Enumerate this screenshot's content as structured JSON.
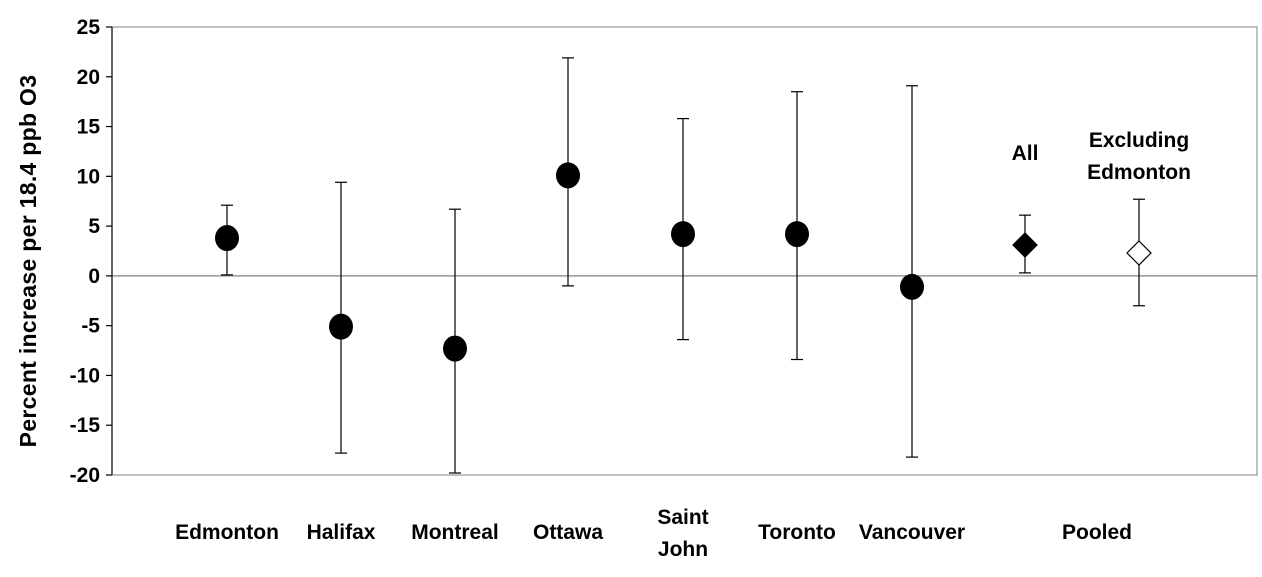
{
  "chart_data": {
    "type": "scatter",
    "ylabel": "Percent increase per 18.4 ppb O3",
    "ylim": [
      -20,
      25
    ],
    "yticks": [
      "25",
      "20",
      "15",
      "10",
      "5",
      "0",
      "-5",
      "-10",
      "-15",
      "-20"
    ],
    "grid": false,
    "categories": [
      {
        "label": [
          "Edmonton"
        ],
        "estimate": 3.8,
        "lower": 0.1,
        "upper": 7.1,
        "marker": "circle-filled"
      },
      {
        "label": [
          "Halifax"
        ],
        "estimate": -5.1,
        "lower": -17.8,
        "upper": 9.4,
        "marker": "circle-filled"
      },
      {
        "label": [
          "Montreal"
        ],
        "estimate": -7.3,
        "lower": -19.8,
        "upper": 6.7,
        "marker": "circle-filled"
      },
      {
        "label": [
          "Ottawa"
        ],
        "estimate": 10.1,
        "lower": -1.0,
        "upper": 21.9,
        "marker": "circle-filled"
      },
      {
        "label": [
          "Saint",
          "John"
        ],
        "estimate": 4.2,
        "lower": -6.4,
        "upper": 15.8,
        "marker": "circle-filled"
      },
      {
        "label": [
          "Toronto"
        ],
        "estimate": 4.2,
        "lower": -8.4,
        "upper": 18.5,
        "marker": "circle-filled"
      },
      {
        "label": [
          "Vancouver"
        ],
        "estimate": -1.1,
        "lower": -18.2,
        "upper": 19.1,
        "marker": "circle-filled"
      },
      {
        "label": [
          ""
        ],
        "estimate": 3.1,
        "lower": 0.3,
        "upper": 6.1,
        "marker": "diamond-filled",
        "annotation": [
          "All"
        ]
      },
      {
        "label": [
          ""
        ],
        "estimate": 2.3,
        "lower": -3.0,
        "upper": 7.7,
        "marker": "diamond-open",
        "annotation": [
          "Excluding",
          "Edmonton"
        ]
      }
    ],
    "group_label": "Pooled",
    "reference_line": 0
  }
}
